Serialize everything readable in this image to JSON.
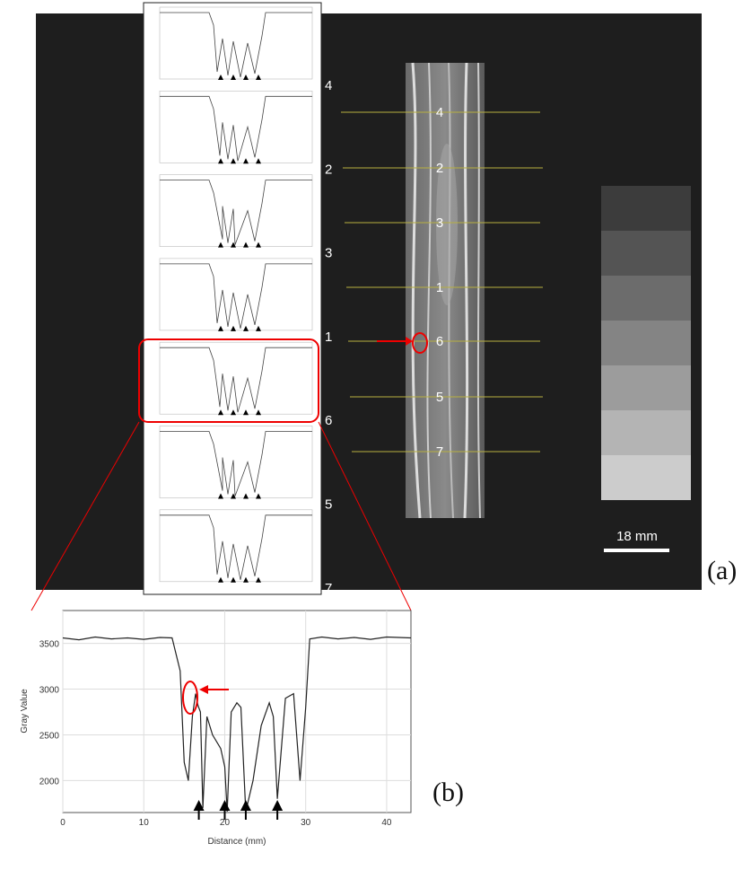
{
  "panel_a": {
    "profile_labels": [
      "4",
      "2",
      "3",
      "1",
      "6",
      "5",
      "7"
    ],
    "scan_labels": [
      "4",
      "2",
      "3",
      "1",
      "6",
      "5",
      "7"
    ],
    "scale_bar": "18 mm",
    "label": "(a)"
  },
  "panel_b_label": "(b)",
  "chart_data": {
    "type": "line",
    "x_label": "Distance (mm)",
    "y_label": "Gray Value",
    "x": [
      0,
      2,
      4,
      6,
      8,
      10,
      12,
      13.5,
      14.5,
      15,
      15.5,
      16,
      16.4,
      16.7,
      17,
      17.3,
      17.8,
      18.5,
      19.5,
      20,
      20.3,
      20.8,
      21.5,
      22,
      22.6,
      23.5,
      24.5,
      25.5,
      26,
      26.5,
      27.5,
      28.5,
      29.3,
      30,
      30.5,
      32,
      34,
      36,
      38,
      40,
      43
    ],
    "values": [
      3560,
      3540,
      3570,
      3550,
      3560,
      3545,
      3565,
      3560,
      3200,
      2200,
      2000,
      2700,
      2950,
      2820,
      2750,
      1700,
      2700,
      2500,
      2350,
      2150,
      1660,
      2750,
      2850,
      2800,
      1660,
      2000,
      2600,
      2850,
      2700,
      1800,
      2900,
      2950,
      2000,
      2800,
      3550,
      3570,
      3550,
      3565,
      3545,
      3570,
      3560
    ],
    "color": "#222222",
    "markers_x": [
      16.8,
      20,
      22.6,
      26.5
    ],
    "xlim": [
      0,
      43
    ],
    "ylim": [
      1650,
      3860
    ],
    "xticks": [
      0,
      10,
      20,
      30,
      40
    ],
    "yticks": [
      2000,
      2500,
      3000,
      3500
    ],
    "grid": true
  }
}
